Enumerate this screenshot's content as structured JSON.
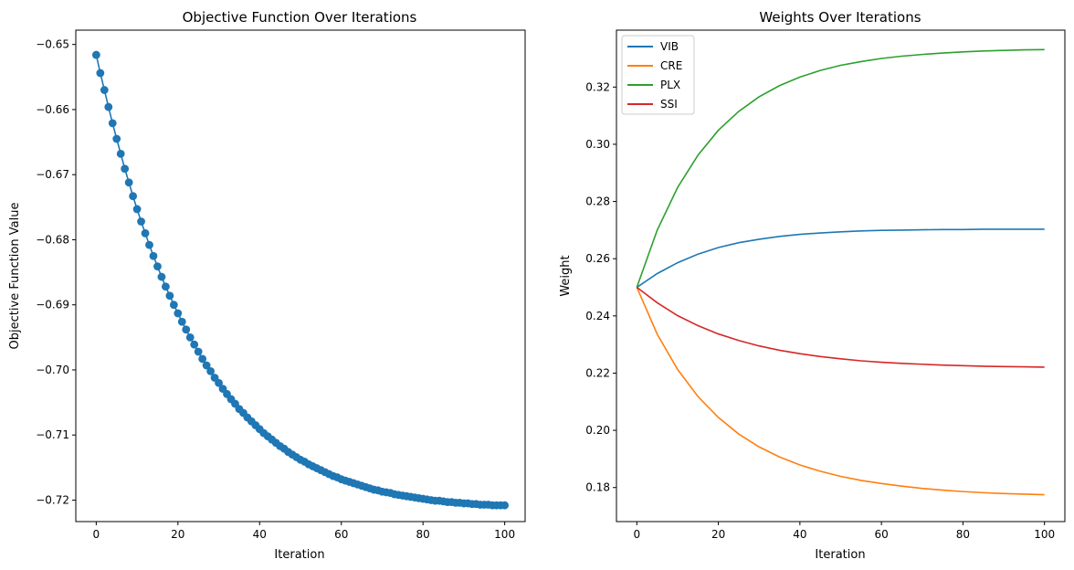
{
  "chart_data": [
    {
      "type": "line",
      "title": "Objective Function Over Iterations",
      "xlabel": "Iteration",
      "ylabel": "Objective Function Value",
      "xlim": [
        -5,
        105
      ],
      "ylim": [
        -0.7233,
        -0.6478
      ],
      "xticks": [
        0,
        20,
        40,
        60,
        80,
        100
      ],
      "yticks": [
        -0.65,
        -0.66,
        -0.67,
        -0.68,
        -0.69,
        -0.7,
        -0.71,
        -0.72
      ],
      "ytick_labels": [
        "−0.65",
        "−0.66",
        "−0.67",
        "−0.68",
        "−0.69",
        "−0.70",
        "−0.71",
        "−0.72"
      ],
      "markers": true,
      "grid": false,
      "series": [
        {
          "color": "#1f77b4",
          "x": [
            0,
            1,
            2,
            3,
            4,
            5,
            6,
            7,
            8,
            9,
            10,
            11,
            12,
            13,
            14,
            15,
            16,
            17,
            18,
            19,
            20,
            21,
            22,
            23,
            24,
            25,
            26,
            27,
            28,
            29,
            30,
            31,
            32,
            33,
            34,
            35,
            36,
            37,
            38,
            39,
            40,
            41,
            42,
            43,
            44,
            45,
            46,
            47,
            48,
            49,
            50,
            51,
            52,
            53,
            54,
            55,
            56,
            57,
            58,
            59,
            60,
            61,
            62,
            63,
            64,
            65,
            66,
            67,
            68,
            69,
            70,
            71,
            72,
            73,
            74,
            75,
            76,
            77,
            78,
            79,
            80,
            81,
            82,
            83,
            84,
            85,
            86,
            87,
            88,
            89,
            90,
            91,
            92,
            93,
            94,
            95,
            96,
            97,
            98,
            99,
            100
          ],
          "y": [
            -0.6516,
            -0.6544,
            -0.657,
            -0.6596,
            -0.6621,
            -0.6645,
            -0.6668,
            -0.6691,
            -0.6712,
            -0.6733,
            -0.6753,
            -0.6772,
            -0.679,
            -0.6808,
            -0.6825,
            -0.6841,
            -0.6857,
            -0.6872,
            -0.6886,
            -0.69,
            -0.6913,
            -0.6926,
            -0.6938,
            -0.695,
            -0.6961,
            -0.6972,
            -0.6983,
            -0.6993,
            -0.7002,
            -0.7012,
            -0.702,
            -0.7029,
            -0.7037,
            -0.7045,
            -0.7052,
            -0.706,
            -0.7066,
            -0.7073,
            -0.7079,
            -0.7085,
            -0.7091,
            -0.7097,
            -0.7102,
            -0.7107,
            -0.7112,
            -0.7117,
            -0.7121,
            -0.7126,
            -0.713,
            -0.7134,
            -0.7138,
            -0.7141,
            -0.7145,
            -0.7148,
            -0.7151,
            -0.7154,
            -0.7157,
            -0.716,
            -0.7163,
            -0.7165,
            -0.7168,
            -0.717,
            -0.7172,
            -0.7174,
            -0.7176,
            -0.7178,
            -0.718,
            -0.7182,
            -0.7184,
            -0.7185,
            -0.7187,
            -0.7188,
            -0.7189,
            -0.7191,
            -0.7192,
            -0.7193,
            -0.7194,
            -0.7195,
            -0.7196,
            -0.7197,
            -0.7198,
            -0.7199,
            -0.72,
            -0.7201,
            -0.7201,
            -0.7202,
            -0.7203,
            -0.7203,
            -0.7204,
            -0.7204,
            -0.7205,
            -0.7205,
            -0.7206,
            -0.7206,
            -0.7207,
            -0.7207,
            -0.7207,
            -0.7208,
            -0.7208,
            -0.7208,
            -0.7208
          ]
        }
      ]
    },
    {
      "type": "line",
      "title": "Weights Over Iterations",
      "xlabel": "Iteration",
      "ylabel": "Weight",
      "xlim": [
        -5,
        105
      ],
      "ylim": [
        0.1681,
        0.3399
      ],
      "xticks": [
        0,
        20,
        40,
        60,
        80,
        100
      ],
      "yticks": [
        0.18,
        0.2,
        0.22,
        0.24,
        0.26,
        0.28,
        0.3,
        0.32
      ],
      "ytick_labels": [
        "0.18",
        "0.20",
        "0.22",
        "0.24",
        "0.26",
        "0.28",
        "0.30",
        "0.32"
      ],
      "grid": false,
      "legend": "top-left",
      "series": [
        {
          "name": "VIB",
          "color": "#1f77b4",
          "x": [
            0,
            5,
            10,
            15,
            20,
            25,
            30,
            35,
            40,
            45,
            50,
            55,
            60,
            65,
            70,
            75,
            80,
            85,
            90,
            95,
            100
          ],
          "y": [
            0.25,
            0.2548,
            0.2586,
            0.2616,
            0.2639,
            0.2656,
            0.2668,
            0.2678,
            0.2685,
            0.269,
            0.2694,
            0.2697,
            0.2699,
            0.27,
            0.2701,
            0.2702,
            0.2702,
            0.2703,
            0.2703,
            0.2703,
            0.2703
          ]
        },
        {
          "name": "CRE",
          "color": "#ff7f0e",
          "x": [
            0,
            5,
            10,
            15,
            20,
            25,
            30,
            35,
            40,
            45,
            50,
            55,
            60,
            65,
            70,
            75,
            80,
            85,
            90,
            95,
            100
          ],
          "y": [
            0.25,
            0.2336,
            0.2213,
            0.2118,
            0.2045,
            0.1987,
            0.1942,
            0.1907,
            0.1879,
            0.1857,
            0.1839,
            0.1825,
            0.1814,
            0.1805,
            0.1797,
            0.1791,
            0.1786,
            0.1782,
            0.1779,
            0.1777,
            0.1775
          ]
        },
        {
          "name": "PLX",
          "color": "#2ca02c",
          "x": [
            0,
            5,
            10,
            15,
            20,
            25,
            30,
            35,
            40,
            45,
            50,
            55,
            60,
            65,
            70,
            75,
            80,
            85,
            90,
            95,
            100
          ],
          "y": [
            0.25,
            0.27,
            0.2849,
            0.2962,
            0.3049,
            0.3115,
            0.3166,
            0.3205,
            0.3235,
            0.3258,
            0.3276,
            0.3289,
            0.33,
            0.3308,
            0.3314,
            0.3319,
            0.3323,
            0.3326,
            0.3328,
            0.333,
            0.3331
          ]
        },
        {
          "name": "SSI",
          "color": "#d62728",
          "x": [
            0,
            5,
            10,
            15,
            20,
            25,
            30,
            35,
            40,
            45,
            50,
            55,
            60,
            65,
            70,
            75,
            80,
            85,
            90,
            95,
            100
          ],
          "y": [
            0.25,
            0.2446,
            0.2401,
            0.2366,
            0.2337,
            0.2314,
            0.2295,
            0.228,
            0.2268,
            0.2258,
            0.225,
            0.2243,
            0.2238,
            0.2234,
            0.2231,
            0.2228,
            0.2226,
            0.2224,
            0.2223,
            0.2222,
            0.2221
          ]
        }
      ]
    }
  ]
}
